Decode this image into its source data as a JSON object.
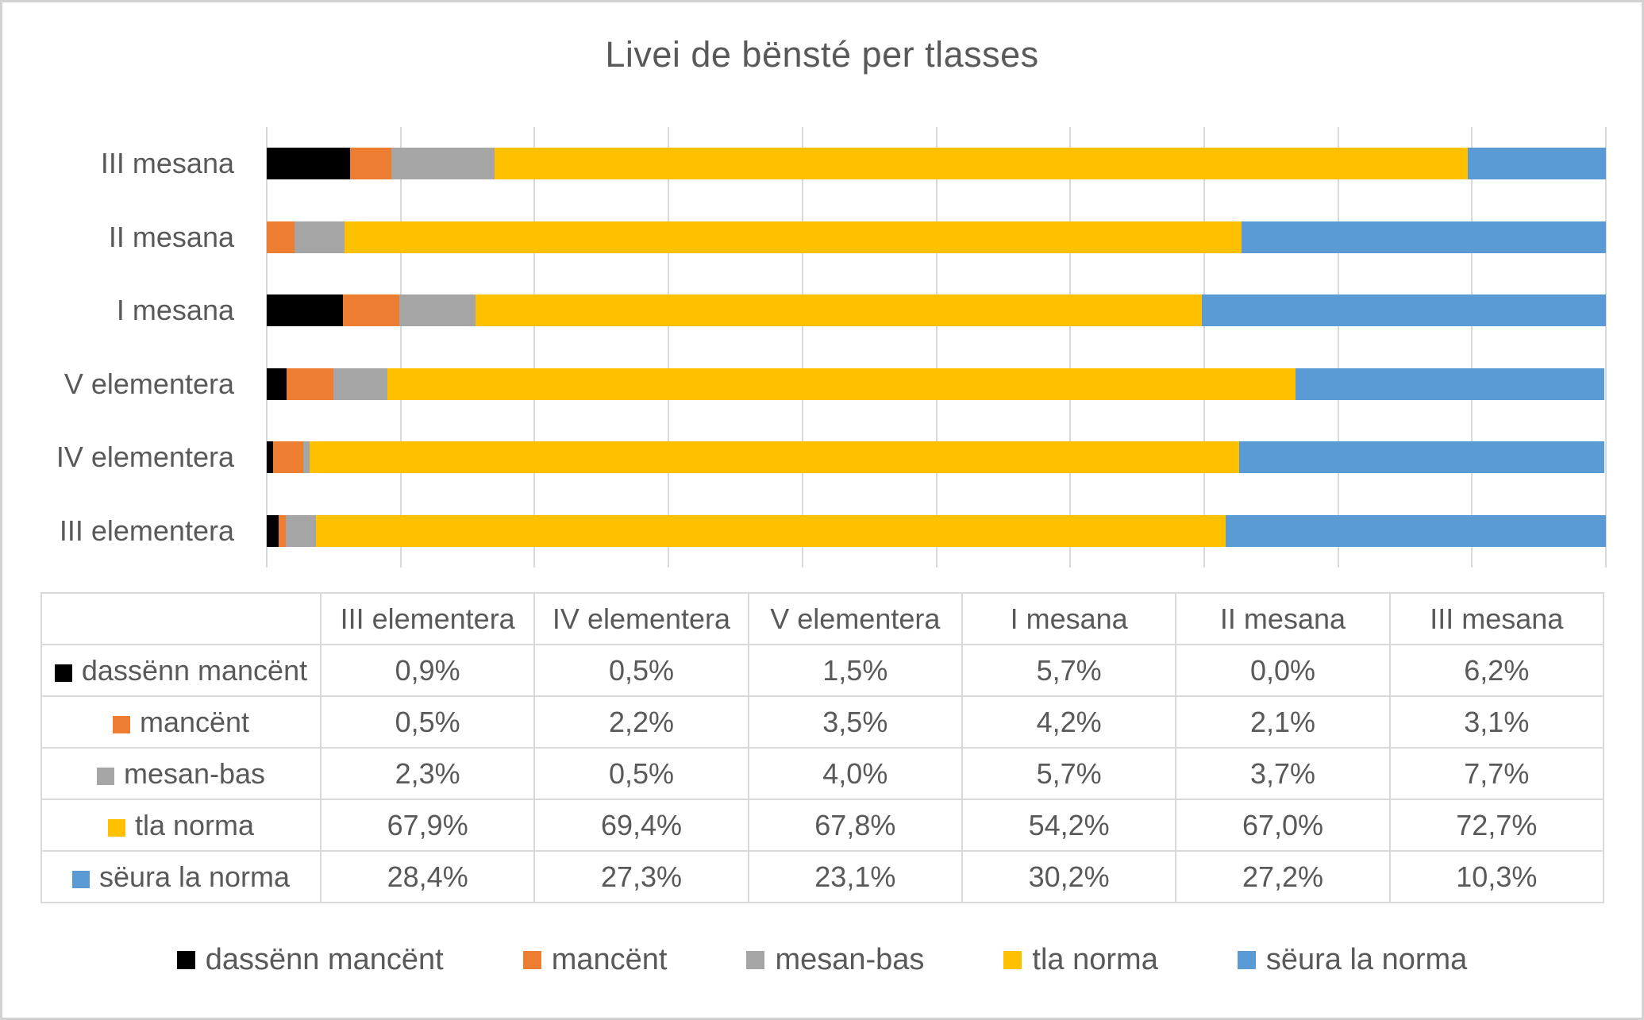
{
  "chart_data": {
    "type": "bar",
    "orientation": "horizontal",
    "stacked": true,
    "percent_stacked": true,
    "title": "Livei de bënsté per tlasses",
    "categories_top_to_bottom": [
      "III mesana",
      "II mesana",
      "I mesana",
      "V elementera",
      "IV elementera",
      "III elementera"
    ],
    "table_columns": [
      "III elementera",
      "IV elementera",
      "V elementera",
      "I mesana",
      "II mesana",
      "III mesana"
    ],
    "series": [
      {
        "name": "dassënn mancënt",
        "color": "#000000",
        "values": [
          0.9,
          0.5,
          1.5,
          5.7,
          0.0,
          6.2
        ],
        "labels": [
          "0,9%",
          "0,5%",
          "1,5%",
          "5,7%",
          "0,0%",
          "6,2%"
        ]
      },
      {
        "name": "mancënt",
        "color": "#ED7D31",
        "values": [
          0.5,
          2.2,
          3.5,
          4.2,
          2.1,
          3.1
        ],
        "labels": [
          "0,5%",
          "2,2%",
          "3,5%",
          "4,2%",
          "2,1%",
          "3,1%"
        ]
      },
      {
        "name": "mesan-bas",
        "color": "#A5A5A5",
        "values": [
          2.3,
          0.5,
          4.0,
          5.7,
          3.7,
          7.7
        ],
        "labels": [
          "2,3%",
          "0,5%",
          "4,0%",
          "5,7%",
          "3,7%",
          "7,7%"
        ]
      },
      {
        "name": "tla norma",
        "color": "#FFC000",
        "values": [
          67.9,
          69.4,
          67.8,
          54.2,
          67.0,
          72.7
        ],
        "labels": [
          "67,9%",
          "69,4%",
          "67,8%",
          "54,2%",
          "67,0%",
          "72,7%"
        ]
      },
      {
        "name": "sëura la norma",
        "color": "#5B9BD5",
        "values": [
          28.4,
          27.3,
          23.1,
          30.2,
          27.2,
          10.3
        ],
        "labels": [
          "28,4%",
          "27,3%",
          "23,1%",
          "30,2%",
          "27,2%",
          "10,3%"
        ]
      }
    ],
    "x_axis": {
      "min": 0,
      "max": 100,
      "gridline_step": 10,
      "gridlines_visible": true,
      "tick_labels_visible": false
    },
    "legend_position": "bottom",
    "data_table_shown": true,
    "colors": {
      "text": "#595959",
      "grid_and_borders": "#D9D9D9",
      "canvas_border": "#D2D2D2",
      "background": "#FFFFFF"
    }
  }
}
